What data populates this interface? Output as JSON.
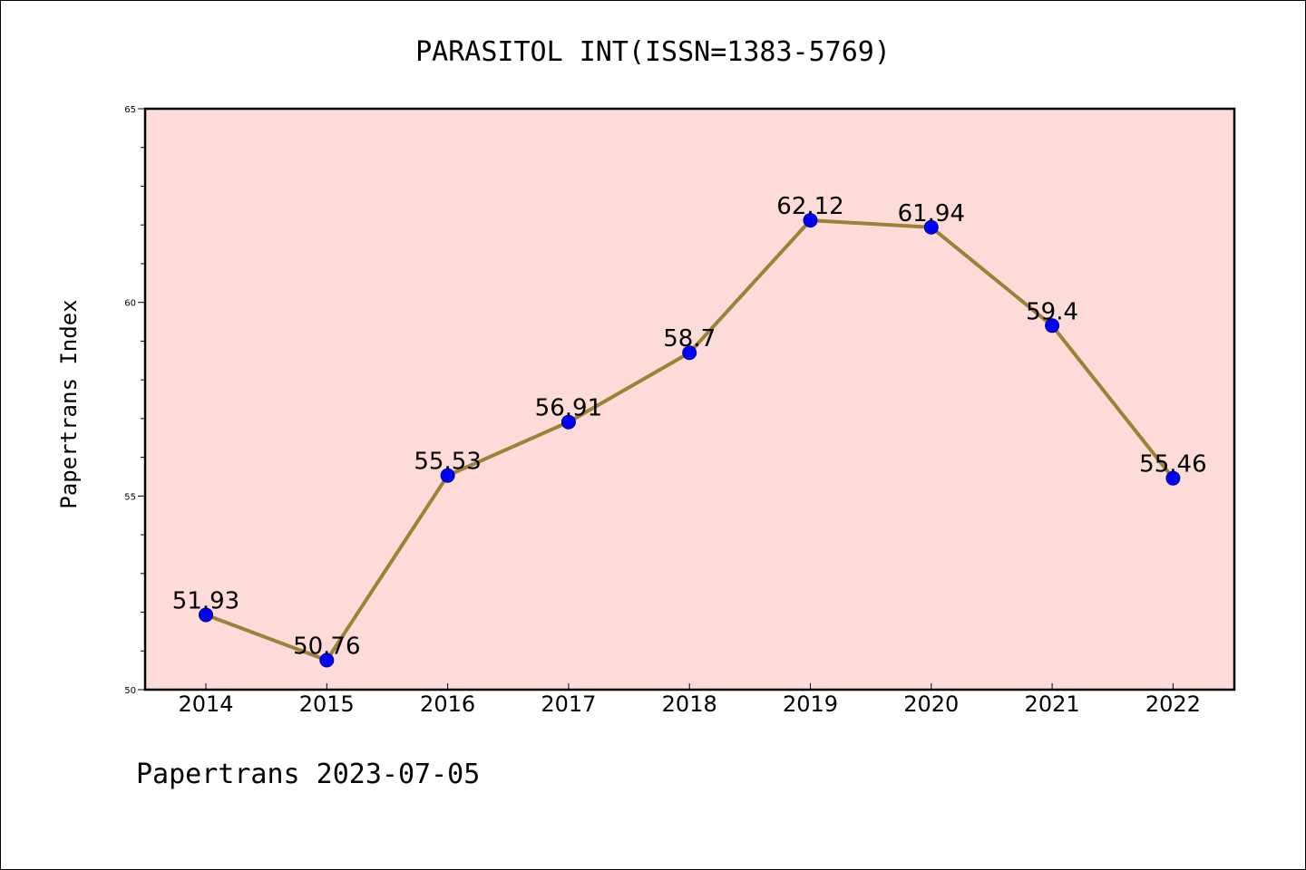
{
  "chart_data": {
    "type": "line",
    "title": "PARASITOL INT(ISSN=1383-5769)",
    "ylabel": "Papertrans Index",
    "xlabel": "",
    "footer": "Papertrans 2023-07-05",
    "categories": [
      "2014",
      "2015",
      "2016",
      "2017",
      "2018",
      "2019",
      "2020",
      "2021",
      "2022"
    ],
    "values": [
      51.93,
      50.76,
      55.53,
      56.91,
      58.7,
      62.12,
      61.94,
      59.4,
      55.46
    ],
    "data_labels": [
      "51.93",
      "50.76",
      "55.53",
      "56.91",
      "58.7",
      "62.12",
      "61.94",
      "59.4",
      "55.46"
    ],
    "ylim": [
      50,
      65
    ],
    "yticks": [
      50,
      55,
      60,
      65
    ],
    "ytick_labels": [
      "50",
      "55",
      "60",
      "65"
    ],
    "grid": false,
    "colors": {
      "plot_background": "#fddbd8",
      "line": "#9a8236",
      "marker": "#0000ff",
      "axes": "#000000"
    }
  }
}
